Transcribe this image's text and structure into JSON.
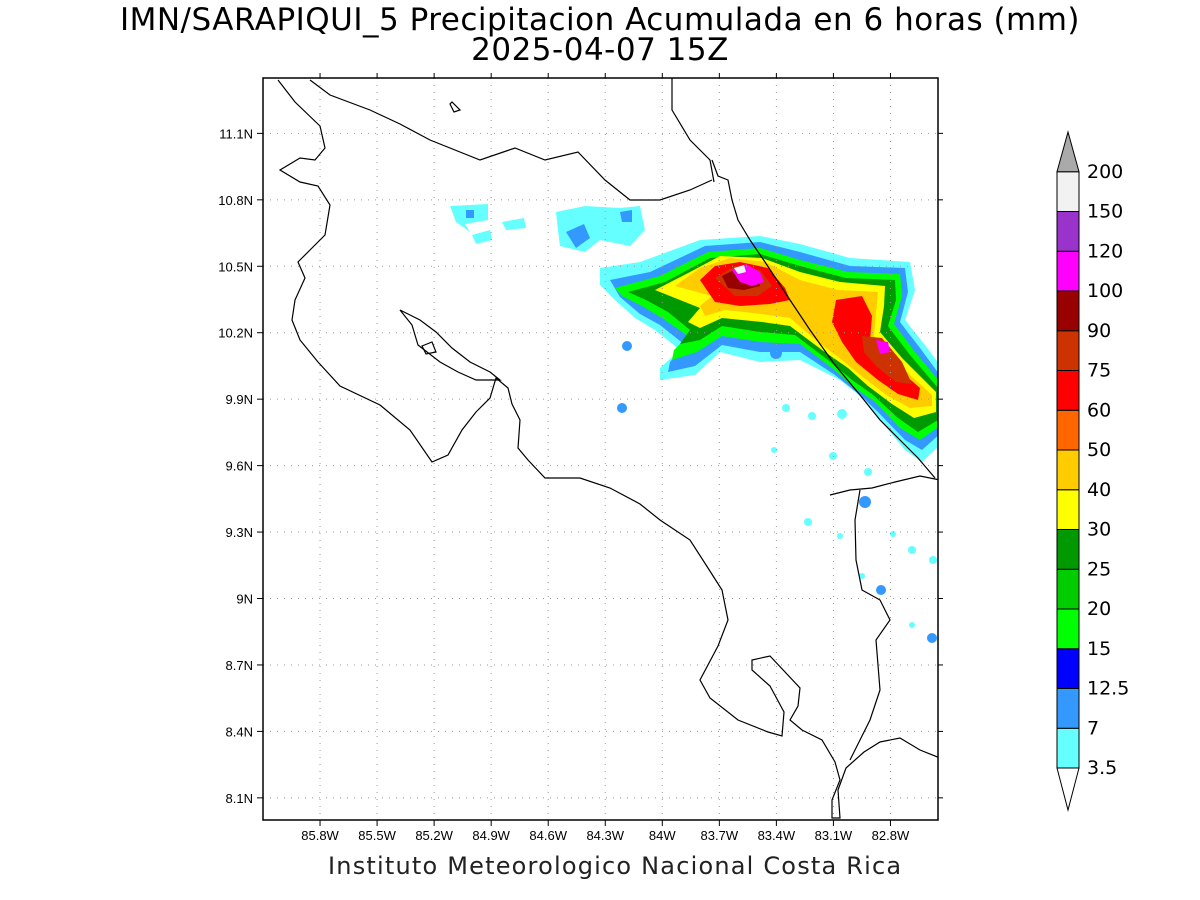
{
  "title": {
    "line1": "IMN/SARAPIQUI_5 Precipitacion Acumulada en 6 horas (mm)",
    "line2": "2025-04-07 15Z"
  },
  "footer": "Instituto Meteorologico Nacional Costa Rica",
  "map": {
    "lon_range": [
      -86.1,
      -82.55
    ],
    "lat_range": [
      8.0,
      11.35
    ],
    "lon_ticks": [
      "85.8W",
      "85.5W",
      "85.2W",
      "84.9W",
      "84.6W",
      "84.3W",
      "84W",
      "83.7W",
      "83.4W",
      "83.1W",
      "82.8W"
    ],
    "lon_values": [
      -85.8,
      -85.5,
      -85.2,
      -84.9,
      -84.6,
      -84.3,
      -84.0,
      -83.7,
      -83.4,
      -83.1,
      -82.8
    ],
    "lat_ticks": [
      "11.1N",
      "10.8N",
      "10.5N",
      "10.2N",
      "9.9N",
      "9.6N",
      "9.3N",
      "9N",
      "8.7N",
      "8.4N",
      "8.1N"
    ],
    "lat_values": [
      11.1,
      10.8,
      10.5,
      10.2,
      9.9,
      9.6,
      9.3,
      9.0,
      8.7,
      8.4,
      8.1
    ],
    "grid": true
  },
  "colorbar": {
    "labels": [
      "3.5",
      "7",
      "12.5",
      "15",
      "20",
      "25",
      "30",
      "40",
      "50",
      "60",
      "75",
      "90",
      "100",
      "120",
      "150",
      "200"
    ],
    "colors": [
      "#66ffff",
      "#3399ff",
      "#0000ff",
      "#00ff00",
      "#00cc00",
      "#009900",
      "#ffff00",
      "#ffcc00",
      "#ff6600",
      "#ff0000",
      "#cc3300",
      "#990000",
      "#ff00ff",
      "#9933cc",
      "#f2f2f2",
      "#aaaaaa"
    ]
  }
}
